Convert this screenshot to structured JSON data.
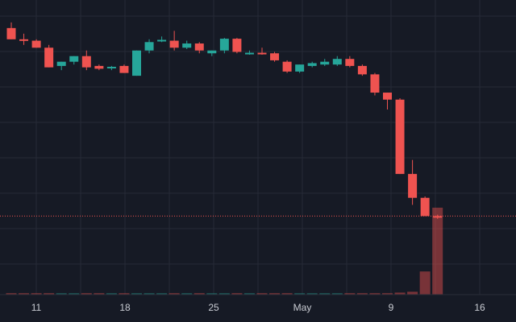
{
  "chart_data": {
    "type": "candlestick",
    "colors": {
      "background": "#161a25",
      "grid": "#262a36",
      "up": "#26a69a",
      "down": "#ef5350",
      "price_line": "#ef5350",
      "axis_text": "#c9ccd3"
    },
    "x_ticks": [
      "11",
      "18",
      "25",
      "May",
      "9",
      "16"
    ],
    "price_line_value": 0.28,
    "ylim": [
      0.0,
      1.05
    ],
    "grid": true,
    "candles": [
      {
        "o": 0.95,
        "h": 0.97,
        "l": 0.91,
        "c": 0.91,
        "v": 0.005
      },
      {
        "o": 0.91,
        "h": 0.93,
        "l": 0.89,
        "c": 0.905,
        "v": 0.005
      },
      {
        "o": 0.905,
        "h": 0.91,
        "l": 0.88,
        "c": 0.88,
        "v": 0.005
      },
      {
        "o": 0.88,
        "h": 0.89,
        "l": 0.81,
        "c": 0.81,
        "v": 0.005
      },
      {
        "o": 0.815,
        "h": 0.83,
        "l": 0.8,
        "c": 0.83,
        "v": 0.005
      },
      {
        "o": 0.83,
        "h": 0.85,
        "l": 0.82,
        "c": 0.85,
        "v": 0.005
      },
      {
        "o": 0.85,
        "h": 0.87,
        "l": 0.8,
        "c": 0.81,
        "v": 0.005
      },
      {
        "o": 0.815,
        "h": 0.82,
        "l": 0.8,
        "c": 0.805,
        "v": 0.005
      },
      {
        "o": 0.81,
        "h": 0.815,
        "l": 0.8,
        "c": 0.812,
        "v": 0.005
      },
      {
        "o": 0.815,
        "h": 0.82,
        "l": 0.79,
        "c": 0.79,
        "v": 0.005
      },
      {
        "o": 0.78,
        "h": 0.87,
        "l": 0.78,
        "c": 0.87,
        "v": 0.005
      },
      {
        "o": 0.87,
        "h": 0.91,
        "l": 0.86,
        "c": 0.9,
        "v": 0.005
      },
      {
        "o": 0.905,
        "h": 0.92,
        "l": 0.9,
        "c": 0.908,
        "v": 0.005
      },
      {
        "o": 0.905,
        "h": 0.94,
        "l": 0.87,
        "c": 0.88,
        "v": 0.005
      },
      {
        "o": 0.88,
        "h": 0.905,
        "l": 0.875,
        "c": 0.895,
        "v": 0.005
      },
      {
        "o": 0.895,
        "h": 0.9,
        "l": 0.86,
        "c": 0.87,
        "v": 0.005
      },
      {
        "o": 0.86,
        "h": 0.87,
        "l": 0.85,
        "c": 0.87,
        "v": 0.005
      },
      {
        "o": 0.87,
        "h": 0.915,
        "l": 0.86,
        "c": 0.912,
        "v": 0.005
      },
      {
        "o": 0.912,
        "h": 0.915,
        "l": 0.86,
        "c": 0.865,
        "v": 0.005
      },
      {
        "o": 0.86,
        "h": 0.87,
        "l": 0.855,
        "c": 0.862,
        "v": 0.005
      },
      {
        "o": 0.862,
        "h": 0.88,
        "l": 0.855,
        "c": 0.86,
        "v": 0.005
      },
      {
        "o": 0.86,
        "h": 0.865,
        "l": 0.83,
        "c": 0.835,
        "v": 0.005
      },
      {
        "o": 0.83,
        "h": 0.835,
        "l": 0.79,
        "c": 0.795,
        "v": 0.005
      },
      {
        "o": 0.795,
        "h": 0.82,
        "l": 0.79,
        "c": 0.82,
        "v": 0.005
      },
      {
        "o": 0.815,
        "h": 0.83,
        "l": 0.81,
        "c": 0.825,
        "v": 0.005
      },
      {
        "o": 0.82,
        "h": 0.84,
        "l": 0.815,
        "c": 0.83,
        "v": 0.005
      },
      {
        "o": 0.82,
        "h": 0.85,
        "l": 0.815,
        "c": 0.84,
        "v": 0.005
      },
      {
        "o": 0.84,
        "h": 0.85,
        "l": 0.81,
        "c": 0.815,
        "v": 0.005
      },
      {
        "o": 0.815,
        "h": 0.82,
        "l": 0.78,
        "c": 0.785,
        "v": 0.005
      },
      {
        "o": 0.785,
        "h": 0.79,
        "l": 0.71,
        "c": 0.72,
        "v": 0.005
      },
      {
        "o": 0.72,
        "h": 0.72,
        "l": 0.66,
        "c": 0.695,
        "v": 0.005
      },
      {
        "o": 0.695,
        "h": 0.7,
        "l": 0.43,
        "c": 0.43,
        "v": 0.007
      },
      {
        "o": 0.43,
        "h": 0.48,
        "l": 0.32,
        "c": 0.345,
        "v": 0.01
      },
      {
        "o": 0.345,
        "h": 0.35,
        "l": 0.28,
        "c": 0.28,
        "v": 0.08
      },
      {
        "o": 0.28,
        "h": 0.285,
        "l": 0.27,
        "c": 0.275,
        "v": 0.3
      }
    ]
  }
}
